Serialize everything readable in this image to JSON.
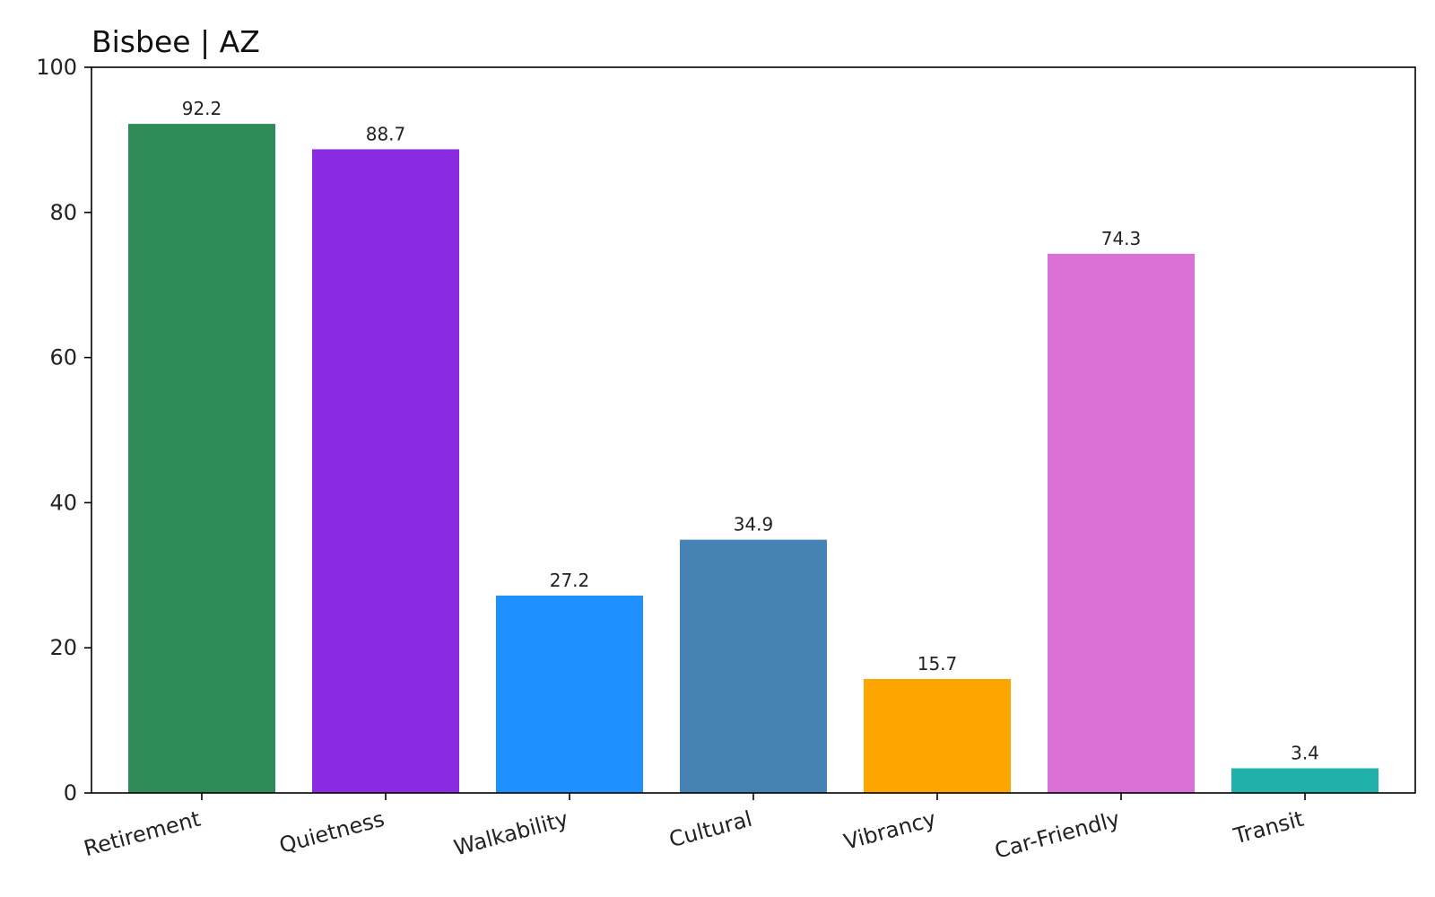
{
  "chart_data": {
    "type": "bar",
    "title": "Bisbee | AZ",
    "xlabel": "",
    "ylabel": "",
    "ylim": [
      0,
      100
    ],
    "yticks": [
      0,
      20,
      40,
      60,
      80,
      100
    ],
    "grid": false,
    "categories": [
      "Retirement",
      "Quietness",
      "Walkability",
      "Cultural",
      "Vibrancy",
      "Car-Friendly",
      "Transit"
    ],
    "values": [
      92.2,
      88.7,
      27.2,
      34.9,
      15.7,
      74.3,
      3.4
    ],
    "data_labels": [
      "92.2",
      "88.7",
      "27.2",
      "34.9",
      "15.7",
      "74.3",
      "3.4"
    ],
    "colors": [
      "#2e8b57",
      "#8a2be2",
      "#1e90ff",
      "#4682b4",
      "#ffa500",
      "#da70d6",
      "#20b2aa"
    ]
  }
}
